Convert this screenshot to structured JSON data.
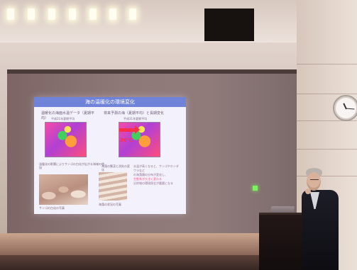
{
  "slide": {
    "title": "海の温暖化の環境変化",
    "left_heading": "温暖化の海面水温データ（夏期平均）",
    "right_heading": "将来予測の海（夏期平均）と長期変化",
    "map_labels": {
      "left_top": "平成21年夏期平均",
      "right_top": "平成31年夏期平均"
    },
    "temperature_change": "30℃",
    "lower_left_heading": "温暖化の影響によりサンゴの白化が広がる海域の増加",
    "middle_heading": "海藻の繁茂と消失の変化",
    "right_text": [
      "水温が高くなると、サンゴやホンダワラなど",
      "の海藻類の分布が変化し、",
      "生態系が大きく変わる",
      "沿岸域の環境保全が重要になる"
    ],
    "caption_left": "サンゴの白化の写真",
    "caption_right": "海藻の状況の写真"
  }
}
